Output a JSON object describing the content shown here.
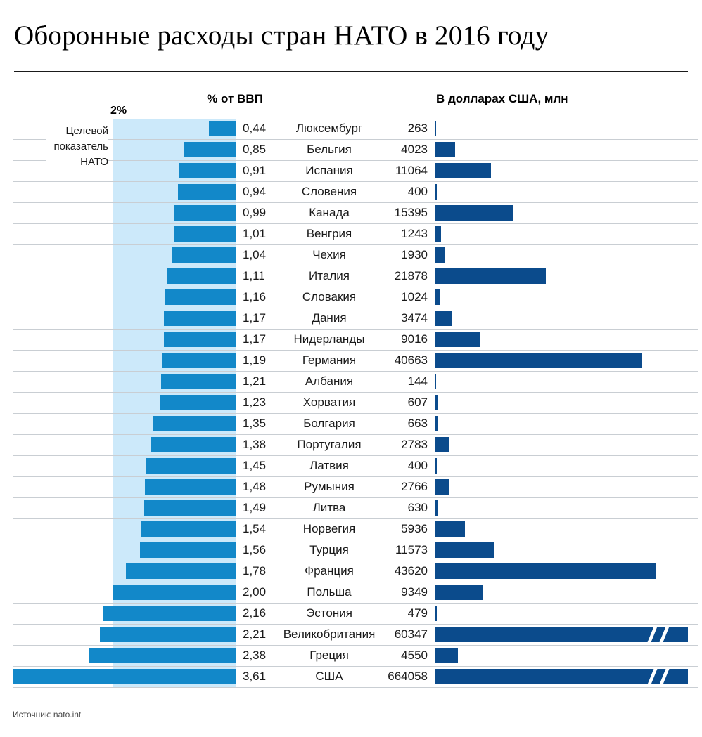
{
  "title": "Оборонные расходы стран НАТО в 2016 году",
  "source": "Источник: nato.int",
  "colors": {
    "left_bar": "#1288c9",
    "right_bar": "#0b4b8c",
    "target_band": "#cce9fa",
    "gridline": "#c9ced3"
  },
  "chart_data": {
    "type": "bar",
    "orientation": "horizontal-bidirectional",
    "title": "Оборонные расходы стран НАТО в 2016 году",
    "left_header": "% от ВВП",
    "right_header": "В долларах США, млн",
    "grid": true,
    "legend_position": "none",
    "target": {
      "label_lines": [
        "Целевой",
        "показатель",
        "НАТО"
      ],
      "value": 2,
      "value_label": "2%"
    },
    "left_axis_max_shown": 2,
    "bars_truncated": [
      "Великобритания",
      "США"
    ],
    "categories": [
      "Люксембург",
      "Бельгия",
      "Испания",
      "Словения",
      "Канада",
      "Венгрия",
      "Чехия",
      "Италия",
      "Словакия",
      "Дания",
      "Нидерланды",
      "Германия",
      "Албания",
      "Хорватия",
      "Болгария",
      "Португалия",
      "Латвия",
      "Румыния",
      "Литва",
      "Норвегия",
      "Турция",
      "Франция",
      "Польша",
      "Эстония",
      "Великобритания",
      "Греция",
      "США"
    ],
    "series": [
      {
        "name": "% от ВВП",
        "axis": "left",
        "values": [
          0.44,
          0.85,
          0.91,
          0.94,
          0.99,
          1.01,
          1.04,
          1.11,
          1.16,
          1.17,
          1.17,
          1.19,
          1.21,
          1.23,
          1.35,
          1.38,
          1.45,
          1.48,
          1.49,
          1.54,
          1.56,
          1.78,
          2.0,
          2.16,
          2.21,
          2.38,
          3.61
        ],
        "value_labels": [
          "0,44",
          "0,85",
          "0,91",
          "0,94",
          "0,99",
          "1,01",
          "1,04",
          "1,11",
          "1,16",
          "1,17",
          "1,17",
          "1,19",
          "1,21",
          "1,23",
          "1,35",
          "1,38",
          "1,45",
          "1,48",
          "1,49",
          "1,54",
          "1,56",
          "1,78",
          "2,00",
          "2,16",
          "2,21",
          "2,38",
          "3,61"
        ]
      },
      {
        "name": "В долларах США, млн",
        "axis": "right",
        "values": [
          263,
          4023,
          11064,
          400,
          15395,
          1243,
          1930,
          21878,
          1024,
          3474,
          9016,
          40663,
          144,
          607,
          663,
          2783,
          400,
          2766,
          630,
          5936,
          11573,
          43620,
          9349,
          479,
          60347,
          4550,
          664058
        ],
        "value_labels": [
          "263",
          "4023",
          "11064",
          "400",
          "15395",
          "1243",
          "1930",
          "21878",
          "1024",
          "3474",
          "9016",
          "40663",
          "144",
          "607",
          "663",
          "2783",
          "400",
          "2766",
          "630",
          "5936",
          "11573",
          "43620",
          "9349",
          "479",
          "60347",
          "4550",
          "664058"
        ]
      }
    ]
  }
}
